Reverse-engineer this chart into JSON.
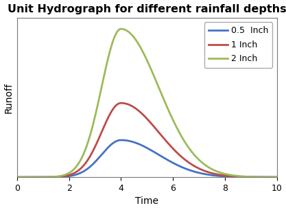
{
  "title": "Unit Hydrograph for different rainfall depths",
  "xlabel": "Time",
  "ylabel": "Runoff",
  "xlim": [
    0,
    10
  ],
  "ylim": [
    0,
    2.15
  ],
  "x_ticks": [
    0,
    2,
    4,
    6,
    8,
    10
  ],
  "peak_time": 4.0,
  "sigma_rise": 0.75,
  "sigma_fall": 1.45,
  "series": [
    {
      "label": "0.5  Inch",
      "amplitude": 0.5,
      "color": "#4472C4"
    },
    {
      "label": "1 Inch",
      "amplitude": 1.0,
      "color": "#BE4B48"
    },
    {
      "label": "2 Inch",
      "amplitude": 2.0,
      "color": "#9BBB59"
    }
  ],
  "background_color": "#FFFFFF",
  "plot_bg_color": "#FFFFFF",
  "title_fontsize": 11.5,
  "label_fontsize": 10,
  "tick_fontsize": 9,
  "legend_fontsize": 9,
  "line_width": 2.0
}
